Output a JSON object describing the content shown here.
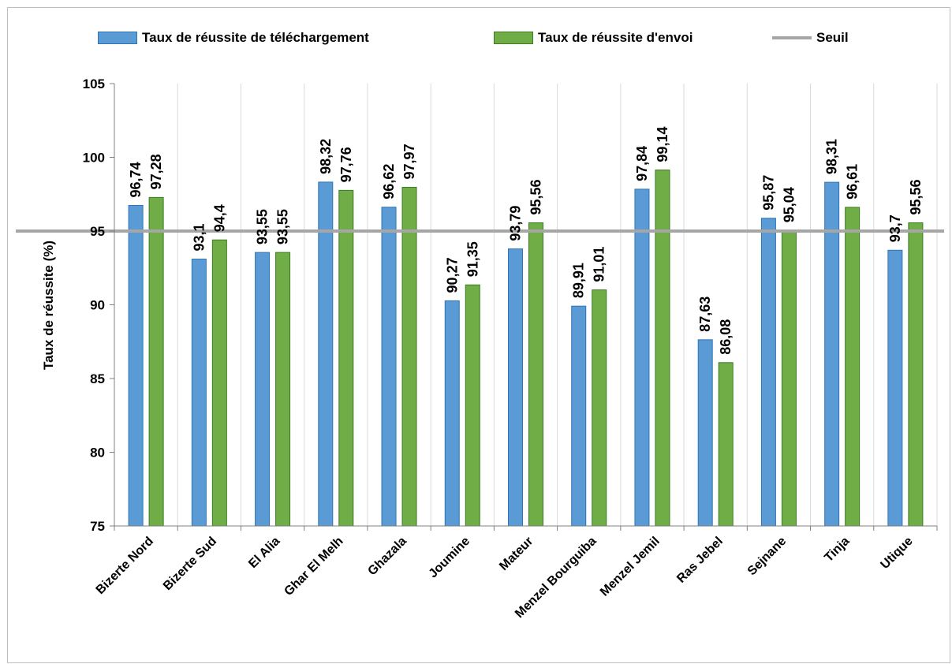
{
  "chart_data": {
    "type": "bar",
    "title": "",
    "xlabel": "",
    "ylabel": "Taux de réussite (%)",
    "ylim": [
      75,
      105
    ],
    "yticks": [
      75,
      80,
      85,
      90,
      95,
      100,
      105
    ],
    "grid": "vertical category separators",
    "legend_position": "top",
    "categories": [
      "Bizerte Nord",
      "Bizerte Sud",
      "El Alia",
      "Ghar El Melh",
      "Ghazala",
      "Joumine",
      "Mateur",
      "Menzel Bourguiba",
      "Menzel Jemil",
      "Ras Jebel",
      "Sejnane",
      "Tinja",
      "Utique"
    ],
    "series": [
      {
        "name": "Taux de réussite de téléchargement",
        "color": "#5b9bd5",
        "border": "#2e75b6",
        "values": [
          96.74,
          93.1,
          93.55,
          98.32,
          96.62,
          90.27,
          93.79,
          89.91,
          97.84,
          87.63,
          95.87,
          98.31,
          93.7
        ],
        "labels": [
          "96,74",
          "93,1",
          "93,55",
          "98,32",
          "96,62",
          "90,27",
          "93,79",
          "89,91",
          "97,84",
          "87,63",
          "95,87",
          "98,31",
          "93,7"
        ]
      },
      {
        "name": "Taux de réussite d'envoi",
        "color": "#70ad47",
        "border": "#3a7d22",
        "values": [
          97.28,
          94.4,
          93.55,
          97.76,
          97.97,
          91.35,
          95.56,
          91.01,
          99.14,
          86.08,
          95.04,
          96.61,
          95.56
        ],
        "labels": [
          "97,28",
          "94,4",
          "93,55",
          "97,76",
          "97,97",
          "91,35",
          "95,56",
          "91,01",
          "99,14",
          "86,08",
          "95,04",
          "96,61",
          "95,56"
        ]
      }
    ],
    "threshold": {
      "name": "Seuil",
      "value": 95,
      "color": "#a6a6a6"
    }
  }
}
